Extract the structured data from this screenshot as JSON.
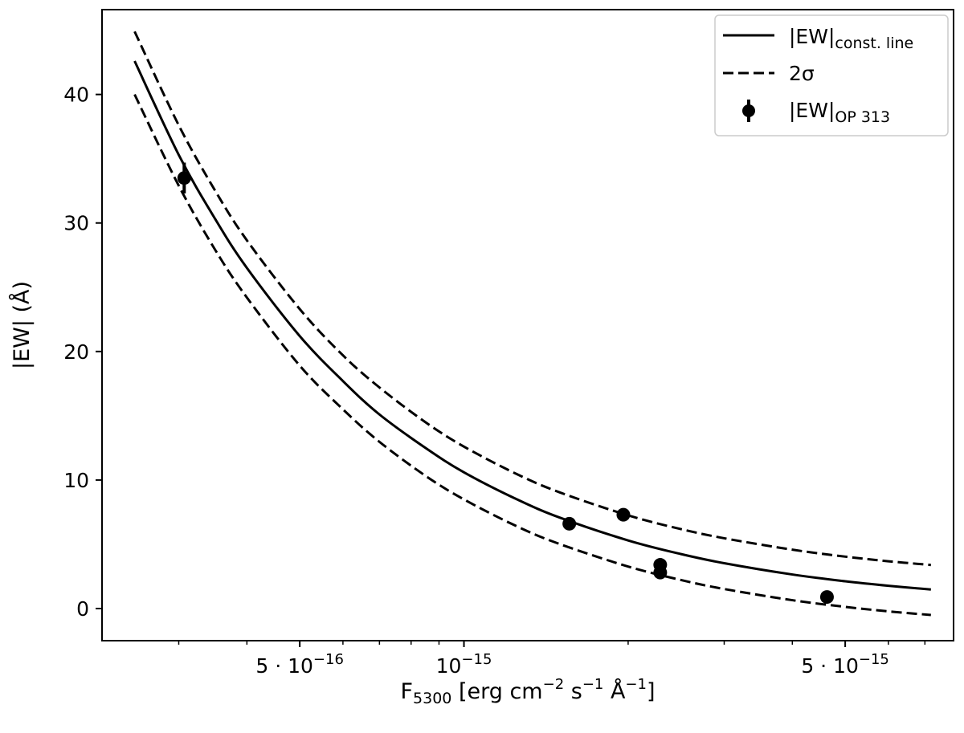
{
  "chart_data": {
    "type": "line",
    "title": "",
    "xlabel": "F5300 [erg cm^-2 s^-1 Å^-1]",
    "xlabel_parts": {
      "main": "F",
      "sub": "5300",
      "rest1": " [erg cm",
      "sup1": "−2",
      "rest2": " s",
      "sup2": "−1",
      "rest3": " Å",
      "sup3": "−1",
      "rest4": "]"
    },
    "ylabel": "|EW| (Å)",
    "xscale": "log",
    "xlim": [
      2.17e-16,
      7.9e-15
    ],
    "ylim": [
      -2.5,
      46.6
    ],
    "grid": false,
    "legend_position": "top-right",
    "x_tick_labels": [
      {
        "value": 5e-16,
        "mant": "5 · 10",
        "exp": "−16"
      },
      {
        "value": 1e-15,
        "mant": "10",
        "exp": "−15"
      },
      {
        "value": 5e-15,
        "mant": "5 · 10",
        "exp": "−15"
      }
    ],
    "x_minor_ticks": [
      3e-16,
      4e-16,
      6e-16,
      7e-16,
      8e-16,
      9e-16,
      2e-15,
      3e-15,
      4e-15,
      6e-15,
      7e-15
    ],
    "y_ticks": [
      0,
      10,
      20,
      30,
      40
    ],
    "x": [
      2.49e-16,
      3e-16,
      3.5e-16,
      4e-16,
      5e-16,
      6e-16,
      7e-16,
      8.5e-16,
      1e-15,
      1.25e-15,
      1.5e-15,
      2e-15,
      2.5e-15,
      3e-15,
      4e-15,
      5e-15,
      6e-15,
      7.18e-15
    ],
    "series": [
      {
        "name": "|EW|const. line",
        "legend_main": "|EW|",
        "legend_sub": "const. line",
        "style": "solid",
        "values": [
          42.6,
          35.3,
          30.3,
          26.5,
          21.2,
          17.7,
          15.1,
          12.5,
          10.6,
          8.5,
          7.07,
          5.3,
          4.24,
          3.53,
          2.65,
          2.12,
          1.77,
          1.48
        ]
      },
      {
        "name": "2σ",
        "legend_main": "2σ",
        "legend_sub": "",
        "style": "dashed",
        "values": [
          44.9,
          37.6,
          32.5,
          28.65,
          23.3,
          19.7,
          17.2,
          14.5,
          12.6,
          10.46,
          9.03,
          7.25,
          6.18,
          5.47,
          4.58,
          4.04,
          3.68,
          3.39
        ]
      },
      {
        "name": "",
        "style": "dashed",
        "values": [
          40.0,
          32.9,
          27.9,
          24.2,
          18.9,
          15.5,
          12.97,
          10.33,
          8.49,
          6.4,
          5.01,
          3.27,
          2.22,
          1.52,
          0.65,
          0.13,
          -0.22,
          -0.5
        ]
      }
    ],
    "points": {
      "name": "|EW|OP 313",
      "legend_main": "|EW|",
      "legend_sub": "OP 313",
      "data": [
        {
          "x": 3.07e-16,
          "y": 33.5,
          "err": 1.2
        },
        {
          "x": 1.56e-15,
          "y": 6.6,
          "err": 0.3
        },
        {
          "x": 1.96e-15,
          "y": 7.3,
          "err": 0.3
        },
        {
          "x": 2.29e-15,
          "y": 3.4,
          "err": 0.3
        },
        {
          "x": 2.29e-15,
          "y": 2.8,
          "err": 0.3
        },
        {
          "x": 4.63e-15,
          "y": 0.9,
          "err": 0.3
        }
      ]
    }
  }
}
